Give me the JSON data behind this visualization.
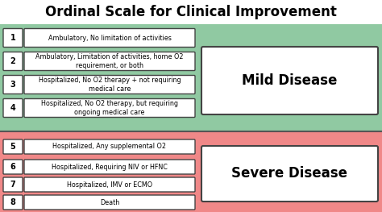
{
  "title": "Ordinal Scale for Clinical Improvement",
  "title_fontsize": 12,
  "mild_color": "#90C9A2",
  "severe_color": "#F08888",
  "box_color": "#FFFFFF",
  "text_color": "#000000",
  "mild_label": "Mild Disease",
  "severe_label": "Severe Disease",
  "mild_rows": [
    {
      "num": "1",
      "text": "Ambulatory, No limitation of activities"
    },
    {
      "num": "2",
      "text": "Ambulatory, Limitation of activities, home O2\nrequirement, or both"
    },
    {
      "num": "3",
      "text": "Hospitalized, No O2 therapy + not requiring\nmedical care"
    },
    {
      "num": "4",
      "text": "Hospitalized, No O2 therapy, but requiring\nongoing medical care"
    }
  ],
  "severe_rows": [
    {
      "num": "5",
      "text": "Hospitalized, Any supplemental O2"
    },
    {
      "num": "6",
      "text": "Hospitalized, Requiring NIV or HFNC"
    },
    {
      "num": "7",
      "text": "Hospitalized, IMV or ECMO"
    },
    {
      "num": "8",
      "text": "Death"
    }
  ]
}
